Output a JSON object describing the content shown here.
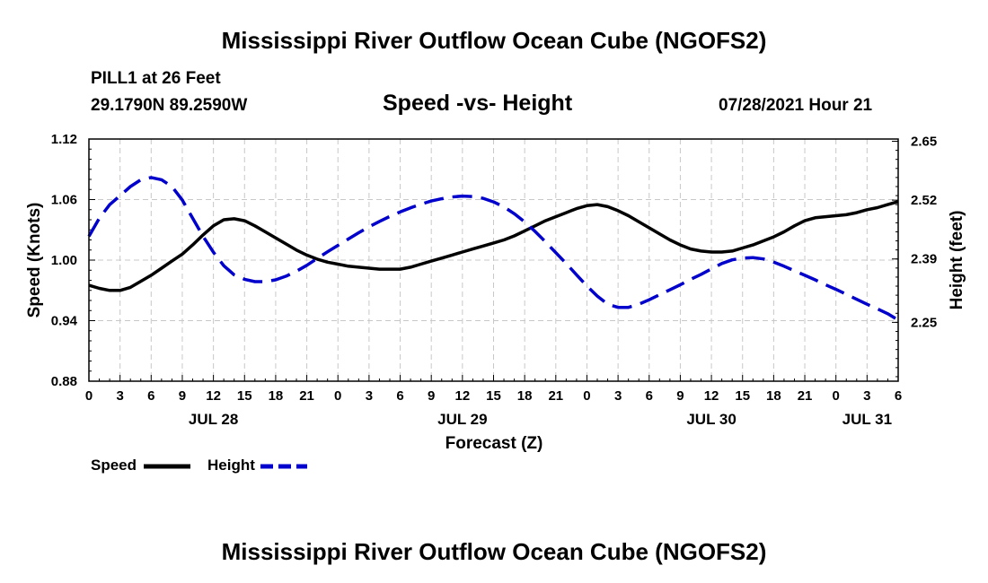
{
  "header": {
    "title": "Mississippi River Outflow Ocean Cube (NGOFS2)",
    "station": "PILL1 at 26 Feet",
    "coordinates": "29.1790N  89.2590W",
    "subtitle": "Speed -vs- Height",
    "timestamp": "07/28/2021 Hour 21"
  },
  "footer": {
    "title": "Mississippi River Outflow Ocean Cube (NGOFS2)"
  },
  "legend": [
    {
      "label": "Speed",
      "color": "#000000",
      "style": "solid"
    },
    {
      "label": "Height",
      "color": "#0000cc",
      "style": "dashed"
    }
  ],
  "chart_data": {
    "type": "line",
    "xlabel": "Forecast (Z)",
    "ylabel": "Speed (Knots)",
    "y2label": "Height (feet)",
    "x_range_hours": [
      0,
      78
    ],
    "x_tick_step_hours": 3,
    "x_tick_labels": [
      "0",
      "3",
      "6",
      "9",
      "12",
      "15",
      "18",
      "21",
      "0",
      "3",
      "6",
      "9",
      "12",
      "15",
      "18",
      "21",
      "0",
      "3",
      "6",
      "9",
      "12",
      "15",
      "18",
      "21",
      "0",
      "3",
      "6"
    ],
    "date_labels": [
      {
        "label": "JUL 28",
        "hour": 12
      },
      {
        "label": "JUL 29",
        "hour": 36
      },
      {
        "label": "JUL 30",
        "hour": 60
      },
      {
        "label": "JUL 31",
        "hour": 75
      }
    ],
    "ylim": [
      0.88,
      1.12
    ],
    "y_ticks": [
      "1.12",
      "1.06",
      "1.00",
      "0.94",
      "0.88"
    ],
    "y2lim": [
      2.12,
      2.655
    ],
    "y2_ticks": [
      "2.65",
      "2.52",
      "2.39",
      "2.25"
    ],
    "grid": true,
    "series": [
      {
        "name": "Speed",
        "axis": "left",
        "color": "#000000",
        "dashed": false,
        "x": [
          0,
          1,
          2,
          3,
          4,
          5,
          6,
          7,
          8,
          9,
          10,
          11,
          12,
          13,
          14,
          15,
          16,
          17,
          18,
          19,
          20,
          21,
          22,
          23,
          24,
          25,
          26,
          27,
          28,
          29,
          30,
          31,
          32,
          33,
          34,
          35,
          36,
          37,
          38,
          39,
          40,
          41,
          42,
          43,
          44,
          45,
          46,
          47,
          48,
          49,
          50,
          51,
          52,
          53,
          54,
          55,
          56,
          57,
          58,
          59,
          60,
          61,
          62,
          63,
          64,
          65,
          66,
          67,
          68,
          69,
          70,
          71,
          72,
          73,
          74,
          75,
          76,
          77,
          78
        ],
        "values": [
          0.975,
          0.972,
          0.97,
          0.97,
          0.973,
          0.979,
          0.985,
          0.992,
          0.999,
          1.006,
          1.015,
          1.025,
          1.034,
          1.04,
          1.041,
          1.039,
          1.034,
          1.028,
          1.022,
          1.016,
          1.01,
          1.005,
          1.001,
          0.998,
          0.996,
          0.994,
          0.993,
          0.992,
          0.991,
          0.991,
          0.991,
          0.993,
          0.996,
          0.999,
          1.002,
          1.005,
          1.008,
          1.011,
          1.014,
          1.017,
          1.02,
          1.024,
          1.029,
          1.034,
          1.039,
          1.043,
          1.047,
          1.051,
          1.054,
          1.055,
          1.053,
          1.049,
          1.044,
          1.038,
          1.032,
          1.026,
          1.02,
          1.015,
          1.011,
          1.009,
          1.008,
          1.008,
          1.009,
          1.012,
          1.015,
          1.019,
          1.023,
          1.028,
          1.034,
          1.039,
          1.042,
          1.043,
          1.044,
          1.045,
          1.047,
          1.05,
          1.052,
          1.055,
          1.058
        ]
      },
      {
        "name": "Height",
        "axis": "right",
        "color": "#0000cc",
        "dashed": true,
        "x": [
          0,
          1,
          2,
          3,
          4,
          5,
          6,
          7,
          8,
          9,
          10,
          11,
          12,
          13,
          14,
          15,
          16,
          17,
          18,
          19,
          20,
          21,
          22,
          23,
          24,
          25,
          26,
          27,
          28,
          29,
          30,
          31,
          32,
          33,
          34,
          35,
          36,
          37,
          38,
          39,
          40,
          41,
          42,
          43,
          44,
          45,
          46,
          47,
          48,
          49,
          50,
          51,
          52,
          53,
          54,
          55,
          56,
          57,
          58,
          59,
          60,
          61,
          62,
          63,
          64,
          65,
          66,
          67,
          68,
          69,
          70,
          71,
          72,
          73,
          74,
          75,
          76,
          77,
          78
        ],
        "values": [
          2.44,
          2.48,
          2.51,
          2.53,
          2.55,
          2.565,
          2.57,
          2.565,
          2.55,
          2.52,
          2.48,
          2.44,
          2.405,
          2.375,
          2.355,
          2.345,
          2.34,
          2.34,
          2.344,
          2.352,
          2.363,
          2.376,
          2.391,
          2.406,
          2.42,
          2.434,
          2.448,
          2.461,
          2.473,
          2.484,
          2.494,
          2.503,
          2.511,
          2.518,
          2.523,
          2.527,
          2.529,
          2.528,
          2.524,
          2.516,
          2.505,
          2.49,
          2.472,
          2.451,
          2.428,
          2.404,
          2.38,
          2.355,
          2.33,
          2.308,
          2.29,
          2.283,
          2.283,
          2.29,
          2.3,
          2.311,
          2.322,
          2.333,
          2.345,
          2.356,
          2.368,
          2.38,
          2.388,
          2.392,
          2.393,
          2.39,
          2.383,
          2.374,
          2.364,
          2.354,
          2.344,
          2.333,
          2.323,
          2.312,
          2.301,
          2.29,
          2.28,
          2.269,
          2.255
        ]
      }
    ]
  }
}
